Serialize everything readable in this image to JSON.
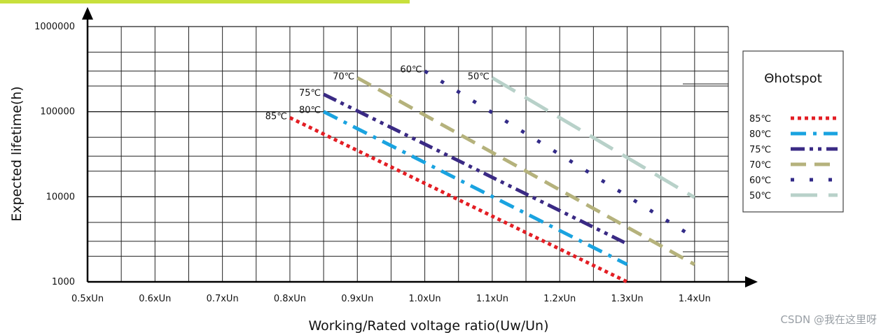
{
  "chart_data": {
    "type": "line",
    "xlabel": "Working/Rated voltage ratio(Uw/Un)",
    "ylabel": "Expected lifetime(h)",
    "y_scale": "log",
    "ylim": [
      1000,
      1000000
    ],
    "xlim": [
      0.5,
      1.45
    ],
    "x_ticks": [
      {
        "value": 0.5,
        "label": "0.5xUn"
      },
      {
        "value": 0.6,
        "label": "0.6xUn"
      },
      {
        "value": 0.7,
        "label": "0.7xUn"
      },
      {
        "value": 0.8,
        "label": "0.8xUn"
      },
      {
        "value": 0.9,
        "label": "0.9xUn"
      },
      {
        "value": 1.0,
        "label": "1.0xUn"
      },
      {
        "value": 1.1,
        "label": "1.1xUn"
      },
      {
        "value": 1.2,
        "label": "1.2xUn"
      },
      {
        "value": 1.3,
        "label": "1.3xUn"
      },
      {
        "value": 1.4,
        "label": "1.4xUn"
      }
    ],
    "y_ticks": [
      {
        "value": 1000,
        "label": "1000"
      },
      {
        "value": 10000,
        "label": "10000"
      },
      {
        "value": 100000,
        "label": "100000"
      },
      {
        "value": 1000000,
        "label": "1000000"
      }
    ],
    "grid": true,
    "legend": {
      "title": "Θhotspot",
      "position": "right"
    },
    "series": [
      {
        "name": "85℃",
        "color": "#e31e24",
        "dash": "dot",
        "points": [
          [
            0.8,
            85000
          ],
          [
            1.3,
            1000
          ]
        ]
      },
      {
        "name": "80℃",
        "color": "#1aa3e0",
        "dash": "dashdot",
        "points": [
          [
            0.85,
            100000
          ],
          [
            1.3,
            1600
          ]
        ]
      },
      {
        "name": "75℃",
        "color": "#3a2a84",
        "dash": "dashdotdot",
        "points": [
          [
            0.85,
            160000
          ],
          [
            1.3,
            2800
          ]
        ]
      },
      {
        "name": "70℃",
        "color": "#b5b27c",
        "dash": "dash",
        "points": [
          [
            0.9,
            250000
          ],
          [
            1.4,
            1600
          ]
        ]
      },
      {
        "name": "60℃",
        "color": "#332b88",
        "dash": "sparse-dot",
        "points": [
          [
            1.0,
            300000
          ],
          [
            1.4,
            3300
          ]
        ]
      },
      {
        "name": "50℃",
        "color": "#b8d1c9",
        "dash": "longdash",
        "points": [
          [
            1.1,
            250000
          ],
          [
            1.4,
            9800
          ]
        ]
      }
    ]
  },
  "watermark": "CSDN @我在这里呀"
}
